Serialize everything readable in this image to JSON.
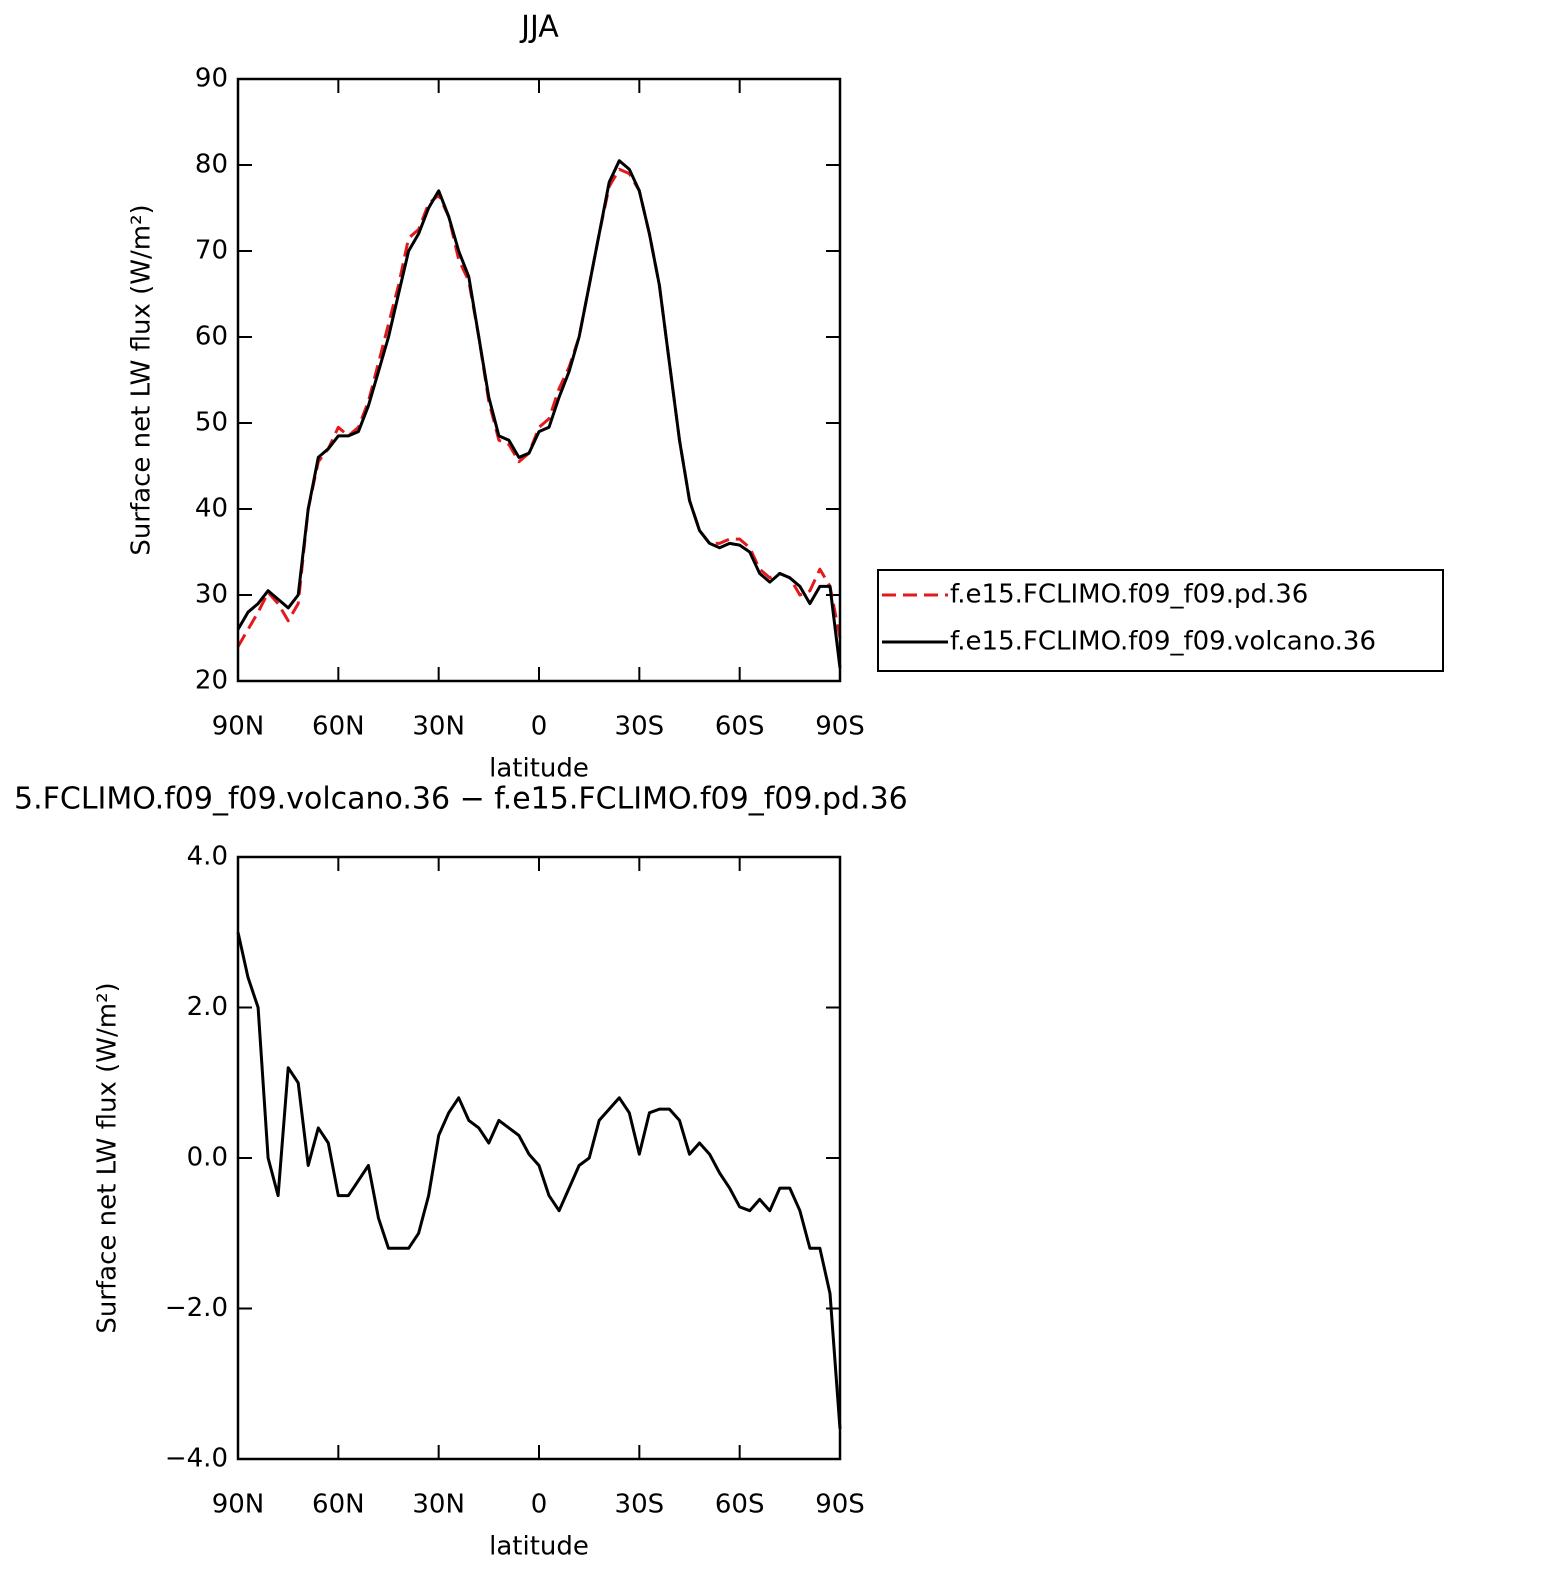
{
  "chart_data": [
    {
      "type": "line",
      "title": "JJA",
      "xlabel": "latitude",
      "ylabel": "Surface net LW flux (W/m²)",
      "x": [
        90,
        87,
        84,
        81,
        78,
        75,
        72,
        69,
        66,
        63,
        60,
        57,
        54,
        51,
        48,
        45,
        42,
        39,
        36,
        33,
        30,
        27,
        24,
        21,
        18,
        15,
        12,
        9,
        6,
        3,
        0,
        -3,
        -6,
        -9,
        -12,
        -15,
        -18,
        -21,
        -24,
        -27,
        -30,
        -33,
        -36,
        -39,
        -42,
        -45,
        -48,
        -51,
        -54,
        -57,
        -60,
        -63,
        -66,
        -69,
        -72,
        -75,
        -78,
        -81,
        -84,
        -87,
        -90
      ],
      "xlim": [
        90,
        -90
      ],
      "xticks": [
        {
          "value": 90,
          "label": "90N"
        },
        {
          "value": 60,
          "label": "60N"
        },
        {
          "value": 30,
          "label": "30N"
        },
        0,
        {
          "value": -30,
          "label": "30S"
        },
        {
          "value": -60,
          "label": "60S"
        },
        {
          "value": -90,
          "label": "90S"
        }
      ],
      "ylim": [
        20,
        90
      ],
      "yticks": [
        20,
        30,
        40,
        50,
        60,
        70,
        80,
        90
      ],
      "legend": "right",
      "series": [
        {
          "name": "f.e15.FCLIMO.f09_f09.pd.36",
          "color": "#e31a1c",
          "dashed": true,
          "values": [
            24,
            26,
            28,
            30.3,
            29,
            27,
            29,
            40,
            45.5,
            47,
            49.5,
            48.5,
            49.5,
            52.5,
            57,
            61.5,
            66,
            71.5,
            72.5,
            75.5,
            76.5,
            74,
            69,
            66.5,
            60,
            52.5,
            48,
            47.5,
            45.5,
            46.5,
            49.5,
            50.5,
            54,
            56.5,
            60,
            66,
            72,
            77.5,
            79.5,
            79,
            77,
            72,
            66,
            57,
            48,
            41,
            37.5,
            36,
            36,
            36.5,
            36.5,
            35.5,
            33,
            32,
            32.5,
            32,
            30,
            30.5,
            33,
            31,
            25
          ]
        },
        {
          "name": "f.e15.FCLIMO.f09_f09.volcano.36",
          "color": "#000000",
          "dashed": false,
          "values": [
            26,
            28,
            29,
            30.5,
            29.5,
            28.5,
            30,
            40,
            46,
            47,
            48.5,
            48.5,
            49,
            52,
            56,
            60,
            65,
            70,
            72,
            75,
            77,
            74,
            70,
            67,
            60,
            53,
            48.5,
            48,
            46,
            46.5,
            49,
            49.5,
            53,
            56,
            60,
            66,
            72,
            78,
            80.5,
            79.5,
            77,
            72,
            66,
            57,
            48,
            41,
            37.5,
            36,
            35.5,
            36,
            35.8,
            35,
            32.5,
            31.5,
            32.5,
            32,
            31,
            29,
            31,
            31,
            21.5
          ]
        }
      ]
    },
    {
      "type": "line",
      "title": "5.FCLIMO.f09_f09.volcano.36 − f.e15.FCLIMO.f09_f09.pd.36",
      "xlabel": "latitude",
      "ylabel": "Surface net LW flux (W/m²)",
      "x": [
        90,
        87,
        84,
        81,
        78,
        75,
        72,
        69,
        66,
        63,
        60,
        57,
        54,
        51,
        48,
        45,
        42,
        39,
        36,
        33,
        30,
        27,
        24,
        21,
        18,
        15,
        12,
        9,
        6,
        3,
        0,
        -3,
        -6,
        -9,
        -12,
        -15,
        -18,
        -21,
        -24,
        -27,
        -30,
        -33,
        -36,
        -39,
        -42,
        -45,
        -48,
        -51,
        -54,
        -57,
        -60,
        -63,
        -66,
        -69,
        -72,
        -75,
        -78,
        -81,
        -84,
        -87,
        -90
      ],
      "xlim": [
        90,
        -90
      ],
      "xticks": [
        {
          "value": 90,
          "label": "90N"
        },
        {
          "value": 60,
          "label": "60N"
        },
        {
          "value": 30,
          "label": "30N"
        },
        0,
        {
          "value": -30,
          "label": "30S"
        },
        {
          "value": -60,
          "label": "60S"
        },
        {
          "value": -90,
          "label": "90S"
        }
      ],
      "ylim": [
        -4,
        4
      ],
      "yticks": [
        {
          "value": -4,
          "label": "−4.0"
        },
        {
          "value": -2,
          "label": "−2.0"
        },
        {
          "value": 0,
          "label": "0.0"
        },
        {
          "value": 2,
          "label": "2.0"
        },
        {
          "value": 4,
          "label": "4.0"
        }
      ],
      "series": [
        {
          "color": "#000000",
          "dashed": false,
          "values": [
            3.0,
            2.4,
            2.0,
            0.0,
            -0.5,
            1.2,
            1.0,
            -0.1,
            0.4,
            0.2,
            -0.5,
            -0.5,
            -0.3,
            -0.1,
            -0.8,
            -1.2,
            -1.2,
            -1.2,
            -1.0,
            -0.5,
            0.3,
            0.6,
            0.8,
            0.5,
            0.4,
            0.2,
            0.5,
            0.4,
            0.3,
            0.05,
            -0.1,
            -0.5,
            -0.7,
            -0.4,
            -0.1,
            0.0,
            0.5,
            0.65,
            0.8,
            0.6,
            0.05,
            0.6,
            0.65,
            0.65,
            0.5,
            0.05,
            0.2,
            0.05,
            -0.2,
            -0.4,
            -0.65,
            -0.7,
            -0.55,
            -0.7,
            -0.4,
            -0.4,
            -0.7,
            -1.2,
            -1.2,
            -1.8,
            -3.6
          ]
        }
      ]
    }
  ]
}
